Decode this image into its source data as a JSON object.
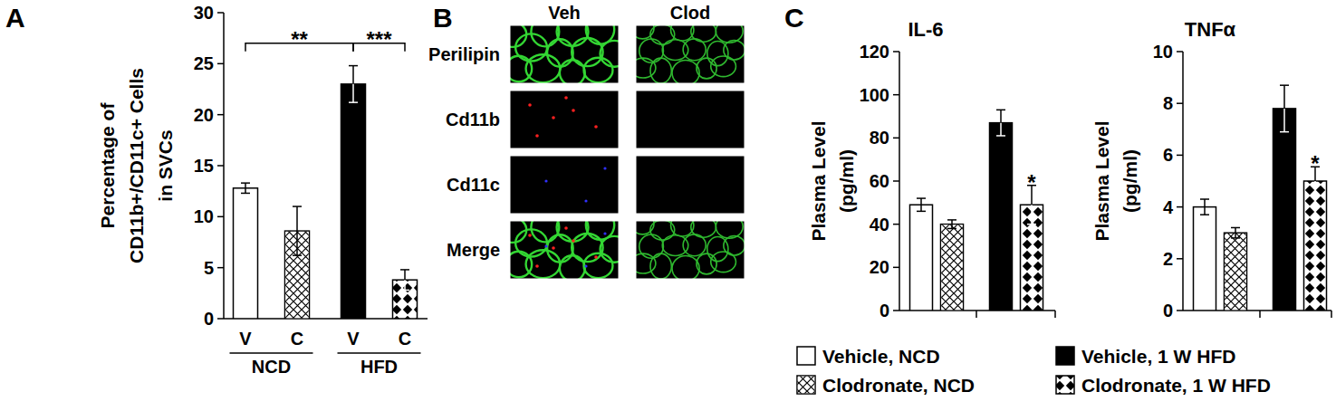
{
  "panel_labels": [
    "A",
    "B",
    "C"
  ],
  "chart_data": [
    {
      "type": "bar",
      "y_label_lines": [
        "Percentage of",
        "CD11b+/CD11c+ Cells",
        "in SVCs"
      ],
      "categories": [
        "V",
        "C",
        "V",
        "C"
      ],
      "groups": [
        {
          "label": "NCD",
          "from": 0,
          "to": 1
        },
        {
          "label": "HFD",
          "from": 2,
          "to": 3
        }
      ],
      "values": [
        12.8,
        8.6,
        23.0,
        3.8
      ],
      "errors": [
        0.5,
        2.4,
        1.8,
        1.0
      ],
      "colors": [
        "#ffffff",
        "#ffffff",
        "#000000",
        "#000000"
      ],
      "ylim": [
        0,
        30
      ],
      "yticks": [
        0,
        5,
        10,
        15,
        20,
        25,
        30
      ],
      "annotations": [
        {
          "text": "**",
          "from": 0,
          "to": 2,
          "y": 27
        },
        {
          "text": "***",
          "from": 2,
          "to": 3,
          "y": 27
        }
      ]
    },
    {
      "type": "bar",
      "title": "IL-6",
      "y_label_lines": [
        "Plasma Level",
        "(pg/ml)"
      ],
      "categories": [
        null,
        null,
        null,
        null
      ],
      "values": [
        49,
        40,
        87,
        49
      ],
      "errors": [
        3,
        2,
        6,
        9
      ],
      "colors": [
        "#ffffff",
        "#ffffff",
        "#000000",
        "#000000"
      ],
      "ylim": [
        0,
        120
      ],
      "yticks": [
        0,
        20,
        40,
        60,
        80,
        100,
        120
      ],
      "annotations": [
        {
          "text": "*",
          "index": 3,
          "y": 61
        }
      ]
    },
    {
      "type": "bar",
      "title": "TNFα",
      "y_label_lines": [
        "Plasma Level",
        "(pg/ml)"
      ],
      "categories": [
        null,
        null,
        null,
        null
      ],
      "values": [
        4.0,
        3.0,
        7.8,
        5.0
      ],
      "errors": [
        0.3,
        0.2,
        0.9,
        0.55
      ],
      "colors": [
        "#ffffff",
        "#ffffff",
        "#000000",
        "#000000"
      ],
      "ylim": [
        0,
        10
      ],
      "yticks": [
        0,
        2,
        4,
        6,
        8,
        10
      ],
      "annotations": [
        {
          "text": "*",
          "index": 3,
          "y": 5.8
        }
      ]
    }
  ],
  "panel_b": {
    "columns": [
      "Veh",
      "Clod"
    ],
    "rows": [
      "Perilipin",
      "Cd11b",
      "Cd11c",
      "Merge"
    ]
  },
  "legend_entries": [
    "Vehicle, NCD",
    "Clodronate, NCD",
    "Vehicle, 1 W HFD",
    "Clodronate, 1 W HFD"
  ]
}
